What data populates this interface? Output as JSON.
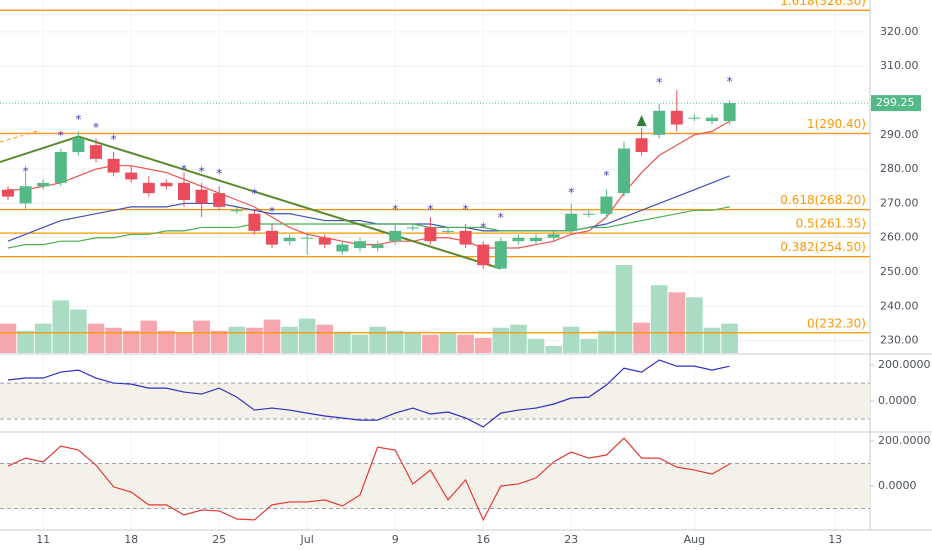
{
  "chart_data": [
    {
      "type": "candlestick",
      "open": [
        274,
        270,
        275,
        276,
        285,
        287,
        283,
        279,
        276,
        276,
        276,
        274,
        273,
        268,
        267,
        262,
        259,
        260,
        260,
        256,
        257,
        257,
        259,
        263,
        263,
        262,
        262,
        258,
        251,
        259,
        259,
        260,
        262,
        267,
        267,
        273,
        289,
        290,
        297,
        295,
        294,
        294
      ],
      "high": [
        275,
        279,
        277,
        286,
        291,
        289,
        285,
        281,
        278,
        277,
        279,
        276,
        275,
        269,
        268,
        264,
        261,
        261,
        261,
        259,
        260,
        259,
        264,
        264,
        266,
        263,
        264,
        259,
        260,
        261,
        261,
        262,
        270,
        268,
        274,
        288,
        292,
        299,
        303,
        296,
        296,
        300
      ],
      "low": [
        271,
        268,
        274,
        275,
        284,
        282,
        278,
        276,
        272,
        274,
        269,
        266,
        268,
        267,
        261,
        257,
        258,
        255,
        257,
        255,
        256,
        256,
        258,
        262,
        258,
        261,
        257,
        251,
        251,
        258,
        258,
        259,
        261,
        266,
        266,
        272,
        284,
        289,
        291,
        294,
        293,
        293
      ],
      "close": [
        272,
        275,
        276,
        285,
        289,
        283,
        279,
        277,
        273,
        275,
        271,
        270,
        269,
        268,
        262,
        258,
        260,
        260,
        258,
        258,
        259,
        258,
        262,
        263,
        259,
        262,
        258,
        252,
        259,
        260,
        260,
        261,
        267,
        267,
        272,
        286,
        285,
        297,
        293,
        295,
        295,
        299.25
      ],
      "volume": [
        29,
        22,
        29,
        52,
        43,
        29,
        25,
        22,
        32,
        22,
        20,
        32,
        22,
        26,
        25,
        33,
        26,
        34,
        28,
        21,
        18,
        26,
        22,
        20,
        18,
        20,
        18,
        15,
        25,
        28,
        14,
        7,
        26,
        14,
        22,
        87,
        30,
        67,
        60,
        55,
        25,
        29
      ],
      "up_color": "#53b987",
      "down_color": "#eb4d5c",
      "volume_up_color": "#a9dcc3",
      "volume_down_color": "#f5a6ae",
      "series": [
        {
          "color": "#ef5350",
          "values": [
            274,
            274,
            275,
            276,
            278,
            280,
            281,
            281,
            280,
            279,
            277,
            275,
            273,
            271,
            269,
            266,
            263,
            261,
            260,
            259,
            258,
            258,
            259,
            259,
            260,
            260,
            259,
            257,
            257,
            257,
            258,
            259,
            261,
            262,
            266,
            273,
            279,
            284,
            287,
            290,
            291,
            294
          ]
        },
        {
          "color": "#3f51b5",
          "values": [
            259,
            261,
            263,
            265,
            266,
            267,
            268,
            269,
            269,
            269,
            270,
            270,
            270,
            269,
            268,
            267,
            267,
            266,
            265,
            265,
            265,
            264,
            264,
            264,
            264,
            263,
            263,
            262,
            262,
            262,
            262,
            262,
            262,
            263,
            264,
            266,
            268,
            270,
            272,
            274,
            276,
            278
          ]
        },
        {
          "color": "#4caf50",
          "values": [
            257,
            258,
            258,
            259,
            259,
            260,
            260,
            261,
            261,
            262,
            262,
            263,
            263,
            263,
            264,
            264,
            264,
            264,
            264,
            264,
            264,
            264,
            264,
            264,
            263,
            263,
            263,
            263,
            262,
            262,
            262,
            262,
            262,
            263,
            263,
            264,
            265,
            266,
            267,
            268,
            268,
            269
          ]
        }
      ],
      "fib_levels": [
        {
          "value": 326.3,
          "label": "1.618(326.30)"
        },
        {
          "value": 290.4,
          "label": "1(290.40)"
        },
        {
          "value": 268.2,
          "label": "0.618(268.20)"
        },
        {
          "value": 261.35,
          "label": "0.5(261.35)"
        },
        {
          "value": 254.5,
          "label": "0.382(254.50)"
        },
        {
          "value": 232.3,
          "label": "0(232.30)"
        }
      ],
      "fib_color": "#ff9800",
      "trendline": {
        "x": [
          -0.5,
          4,
          28
        ],
        "y": [
          282,
          289.5,
          251
        ],
        "color": "#5b8a2e"
      },
      "star_markers": {
        "text": "*",
        "color": "#3f3fbf",
        "x": [
          1,
          3,
          4,
          5,
          6,
          10,
          11,
          12,
          14,
          15,
          22,
          24,
          26,
          27,
          28,
          32,
          34,
          37,
          41
        ],
        "y": [
          279.2,
          289.7,
          294.3,
          292,
          288.5,
          279.8,
          279.2,
          278.6,
          272.8,
          267.5,
          268.1,
          268.1,
          268.1,
          262.9,
          265.8,
          273.1,
          278,
          305.1,
          305.4
        ]
      },
      "arrow_marker": {
        "x": 36,
        "y": 294,
        "color": "#2e7d32"
      },
      "last_price": 299.25,
      "ylim": [
        226.4,
        329.3
      ],
      "yticks": [
        {
          "value": 230,
          "label": "230.00"
        },
        {
          "value": 240,
          "label": "240.00"
        },
        {
          "value": 250,
          "label": "250.00"
        },
        {
          "value": 260,
          "label": "260.00"
        },
        {
          "value": 270,
          "label": "270.00"
        },
        {
          "value": 280,
          "label": "280.00"
        },
        {
          "value": 290,
          "label": "290.00"
        },
        {
          "value": 300,
          "label": "300.00"
        },
        {
          "value": 310,
          "label": "310.00"
        },
        {
          "value": 320,
          "label": "320.00"
        }
      ],
      "xticks": [
        {
          "value": 2,
          "label": "11"
        },
        {
          "value": 7,
          "label": "18"
        },
        {
          "value": 12,
          "label": "25"
        },
        {
          "value": 17,
          "label": "Jul"
        },
        {
          "value": 22,
          "label": "9"
        },
        {
          "value": 27,
          "label": "16"
        },
        {
          "value": 32,
          "label": "23"
        },
        {
          "value": 39,
          "label": "Aug"
        },
        {
          "value": 47,
          "label": "13"
        }
      ]
    },
    {
      "type": "line",
      "color": "#3030c0",
      "values": [
        117,
        128,
        128,
        161,
        172,
        128,
        100,
        94,
        72,
        72,
        50,
        39,
        72,
        22,
        -50,
        -39,
        -50,
        -67,
        -83,
        -94,
        -106,
        -106,
        -67,
        -39,
        -72,
        -61,
        -94,
        -144,
        -67,
        -50,
        -39,
        -17,
        17,
        22,
        89,
        183,
        161,
        228,
        194,
        194,
        172,
        194
      ],
      "bands": [
        100,
        -100
      ],
      "ylim": [
        -172,
        256
      ],
      "yticks": [
        {
          "value": 0,
          "label": "0.0000"
        },
        {
          "value": 200,
          "label": "200.0000"
        }
      ]
    },
    {
      "type": "line",
      "color": "#e53935",
      "values": [
        89,
        124,
        107,
        178,
        160,
        93,
        -4,
        -27,
        -84,
        -84,
        -129,
        -107,
        -111,
        -147,
        -151,
        -84,
        -71,
        -71,
        -62,
        -89,
        -40,
        173,
        160,
        9,
        71,
        -62,
        27,
        -151,
        0,
        9,
        36,
        107,
        151,
        124,
        138,
        213,
        124,
        124,
        84,
        71,
        53,
        98
      ],
      "bands": [
        100,
        -100
      ],
      "ylim": [
        -196,
        236
      ],
      "yticks": [
        {
          "value": 0,
          "label": "0.0000"
        },
        {
          "value": 200,
          "label": "200.0000"
        }
      ]
    }
  ]
}
